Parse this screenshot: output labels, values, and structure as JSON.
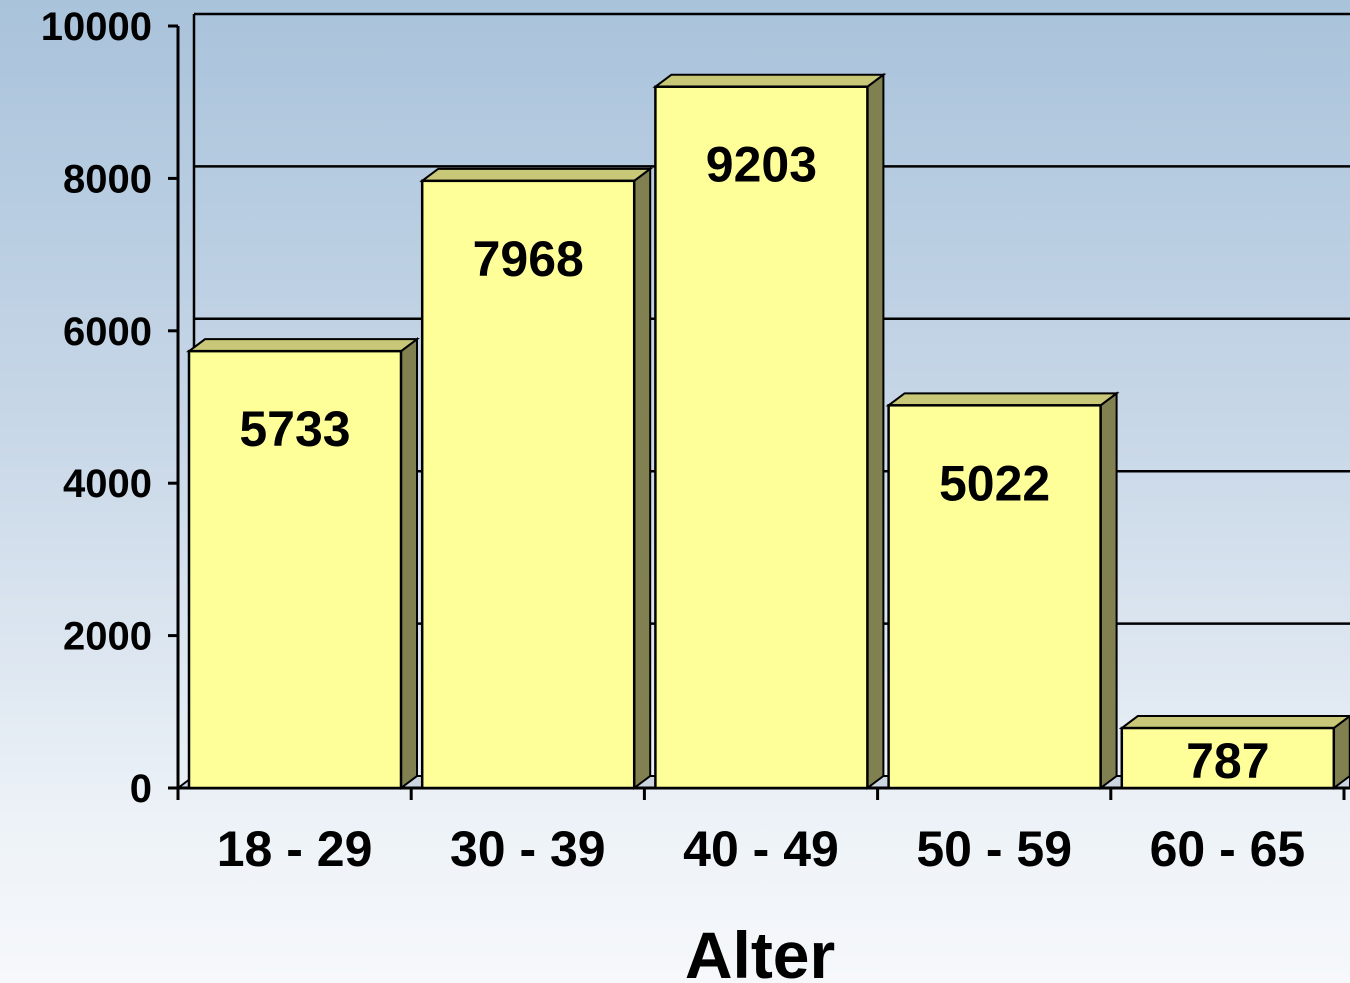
{
  "chart_data": {
    "type": "bar",
    "title": "",
    "xlabel": "Alter",
    "ylabel": "",
    "categories": [
      "18 - 29",
      "30 - 39",
      "40 - 49",
      "50 - 59",
      "60 - 65"
    ],
    "values": [
      5733,
      7968,
      9203,
      5022,
      787
    ],
    "data_labels": [
      "5733",
      "7968",
      "9203",
      "5022",
      "787"
    ],
    "ylim": [
      0,
      10000
    ],
    "yticks": [
      0,
      2000,
      4000,
      6000,
      8000,
      10000
    ],
    "ytick_labels": [
      "0",
      "2000",
      "4000",
      "6000",
      "8000",
      "10000"
    ],
    "grid": true,
    "legend": "none",
    "style": "3d-column",
    "colors": {
      "bar_face": "#ffff99",
      "bar_side": "#808050",
      "bar_top": "#c8c878",
      "gridline": "#000000"
    }
  }
}
